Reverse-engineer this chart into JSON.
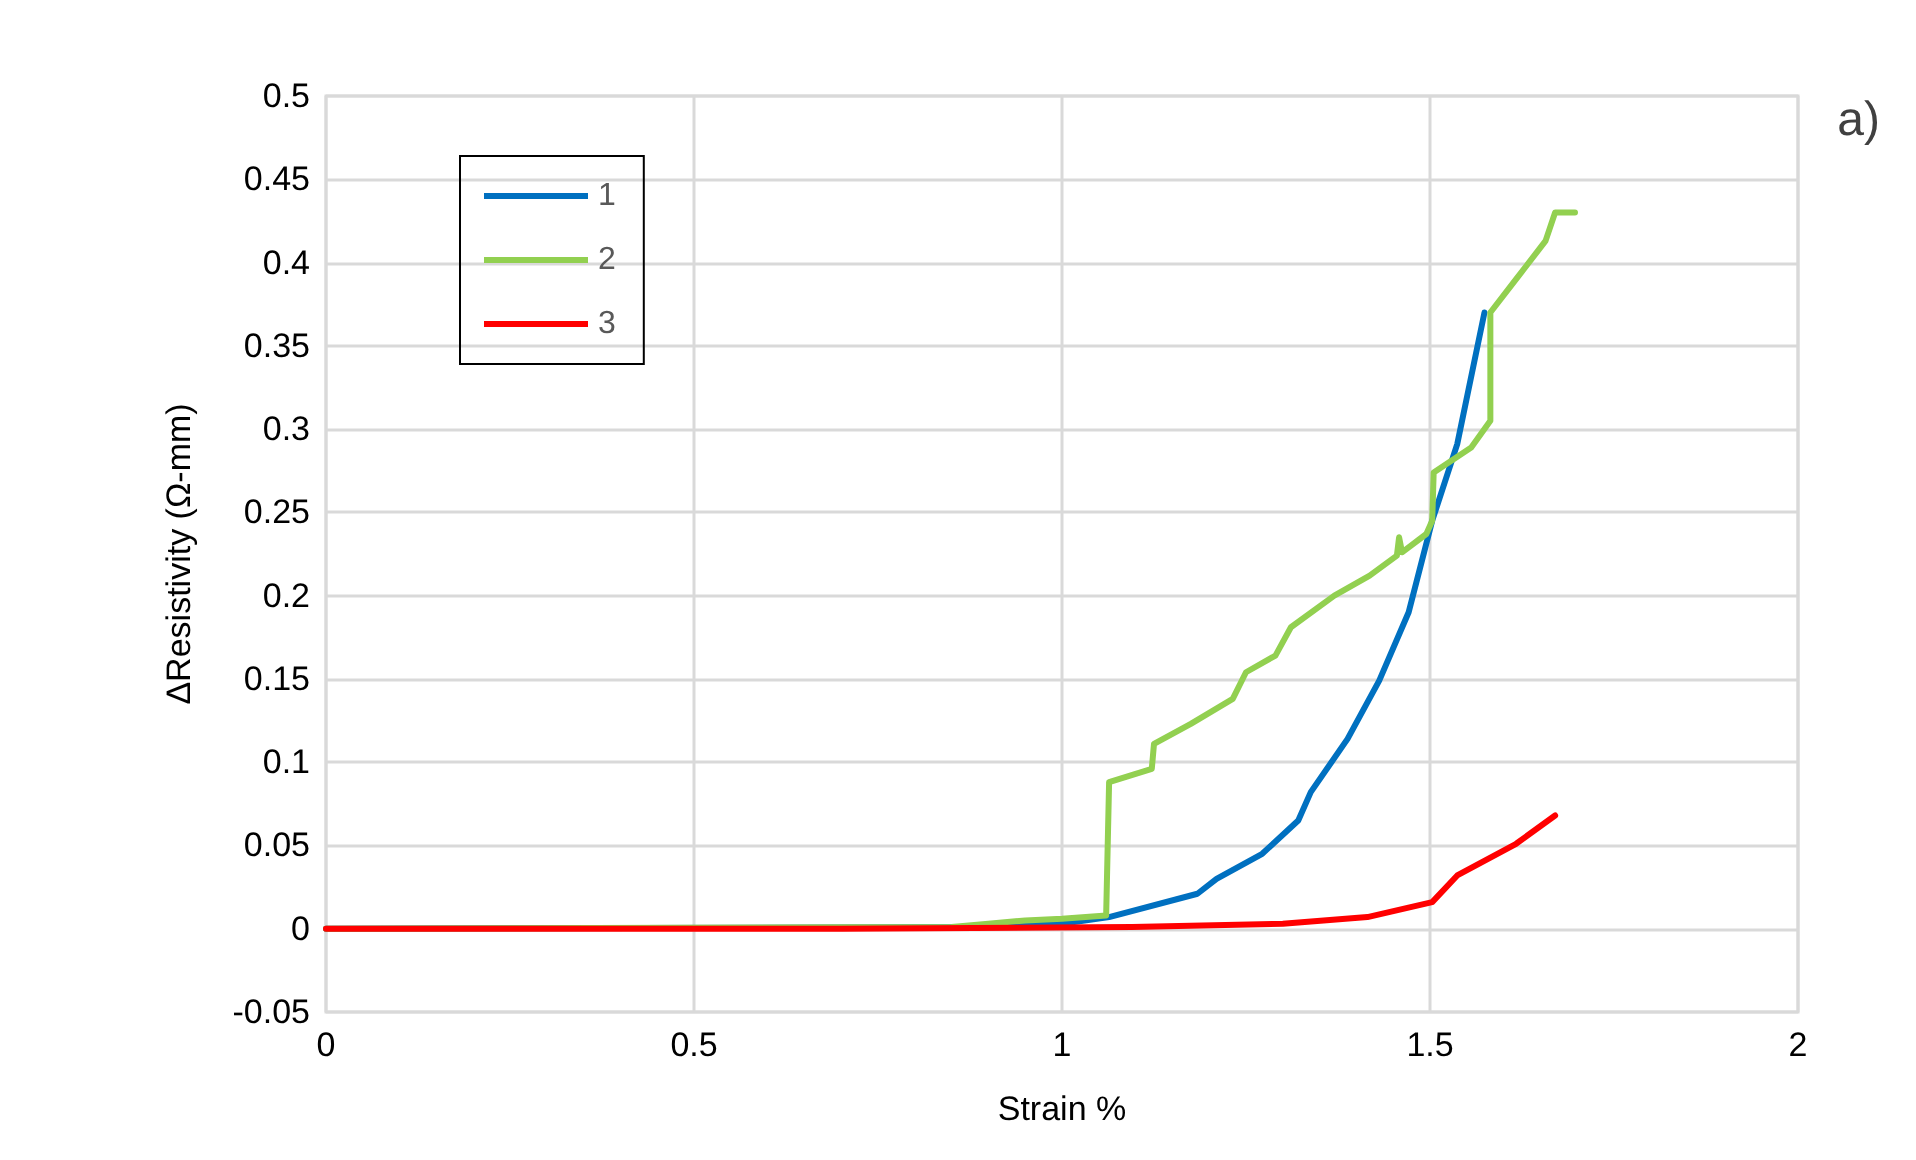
{
  "chart_data": {
    "type": "line",
    "xlabel": "Strain %",
    "ylabel": "ΔResistivity (Ω-mm)",
    "annotations": [
      "a)"
    ],
    "xlim": [
      0,
      2
    ],
    "xticks": [
      0,
      0.5,
      1,
      1.5,
      2
    ],
    "ylim": [
      -0.05,
      0.5
    ],
    "yticks": [
      -0.05,
      0,
      0.05,
      0.1,
      0.15,
      0.2,
      0.25,
      0.3,
      0.35,
      0.4,
      0.45,
      0.5
    ],
    "grid": true,
    "legend": "top left",
    "marker": "none",
    "line_style": "solid",
    "series": [
      {
        "name": "1",
        "color": "#0070c0",
        "x": [
          0,
          0.9,
          1.0,
          1.064,
          1.184,
          1.21,
          1.272,
          1.321,
          1.338,
          1.388,
          1.431,
          1.471,
          1.503,
          1.537,
          1.574
        ],
        "values": [
          0,
          0.001,
          0.003,
          0.007,
          0.021,
          0.03,
          0.045,
          0.065,
          0.082,
          0.114,
          0.149,
          0.19,
          0.245,
          0.291,
          0.37
        ]
      },
      {
        "name": "2",
        "color": "#92d050",
        "x": [
          0,
          0.85,
          0.9,
          0.95,
          1.0,
          1.06,
          1.064,
          1.122,
          1.125,
          1.175,
          1.232,
          1.25,
          1.29,
          1.311,
          1.37,
          1.418,
          1.455,
          1.458,
          1.462,
          1.495,
          1.503,
          1.505,
          1.556,
          1.582,
          1.582,
          1.617,
          1.657,
          1.67,
          1.697
        ],
        "values": [
          0,
          0.001,
          0.003,
          0.005,
          0.006,
          0.008,
          0.088,
          0.096,
          0.111,
          0.123,
          0.138,
          0.154,
          0.164,
          0.181,
          0.2,
          0.212,
          0.224,
          0.235,
          0.226,
          0.237,
          0.245,
          0.274,
          0.289,
          0.305,
          0.37,
          0.39,
          0.413,
          0.43,
          0.43
        ]
      },
      {
        "name": "3",
        "color": "#ff0000",
        "x": [
          0,
          0.7,
          1.095,
          1.3,
          1.415,
          1.503,
          1.537,
          1.617,
          1.67
        ],
        "values": [
          0,
          0,
          0.001,
          0.003,
          0.007,
          0.016,
          0.032,
          0.051,
          0.068
        ]
      }
    ]
  }
}
